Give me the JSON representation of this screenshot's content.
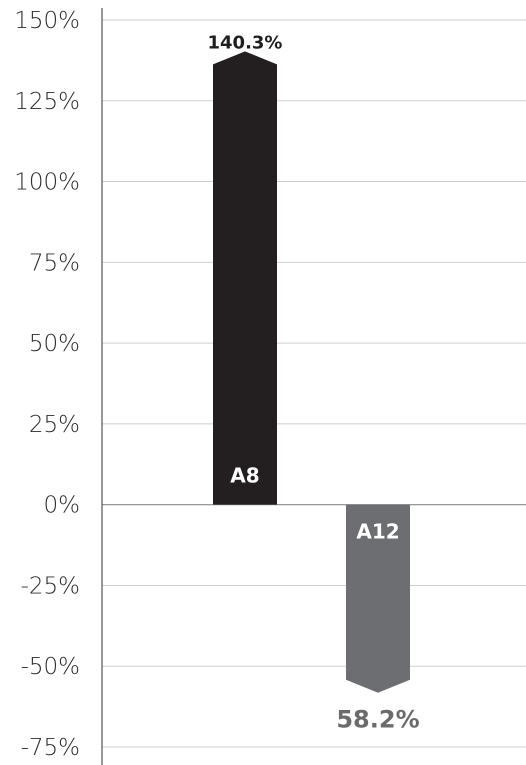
{
  "chart_data": {
    "type": "bar",
    "categories": [
      "A8",
      "A12"
    ],
    "values": [
      140.3,
      -58.2
    ],
    "value_labels": [
      "140.3%",
      "58.2%"
    ],
    "title": "",
    "xlabel": "",
    "ylabel": "",
    "ylim": [
      -75,
      150
    ],
    "yticks": [
      150,
      125,
      100,
      75,
      50,
      25,
      0,
      -25,
      -50,
      -75
    ],
    "ytick_labels": [
      "150%",
      "125%",
      "100%",
      "75%",
      "50%",
      "25%",
      "0%",
      "-25%",
      "-50%",
      "-75%"
    ],
    "colors": [
      "#231f20",
      "#6d6e71"
    ],
    "grid": true,
    "bar_shape": "arrow"
  }
}
